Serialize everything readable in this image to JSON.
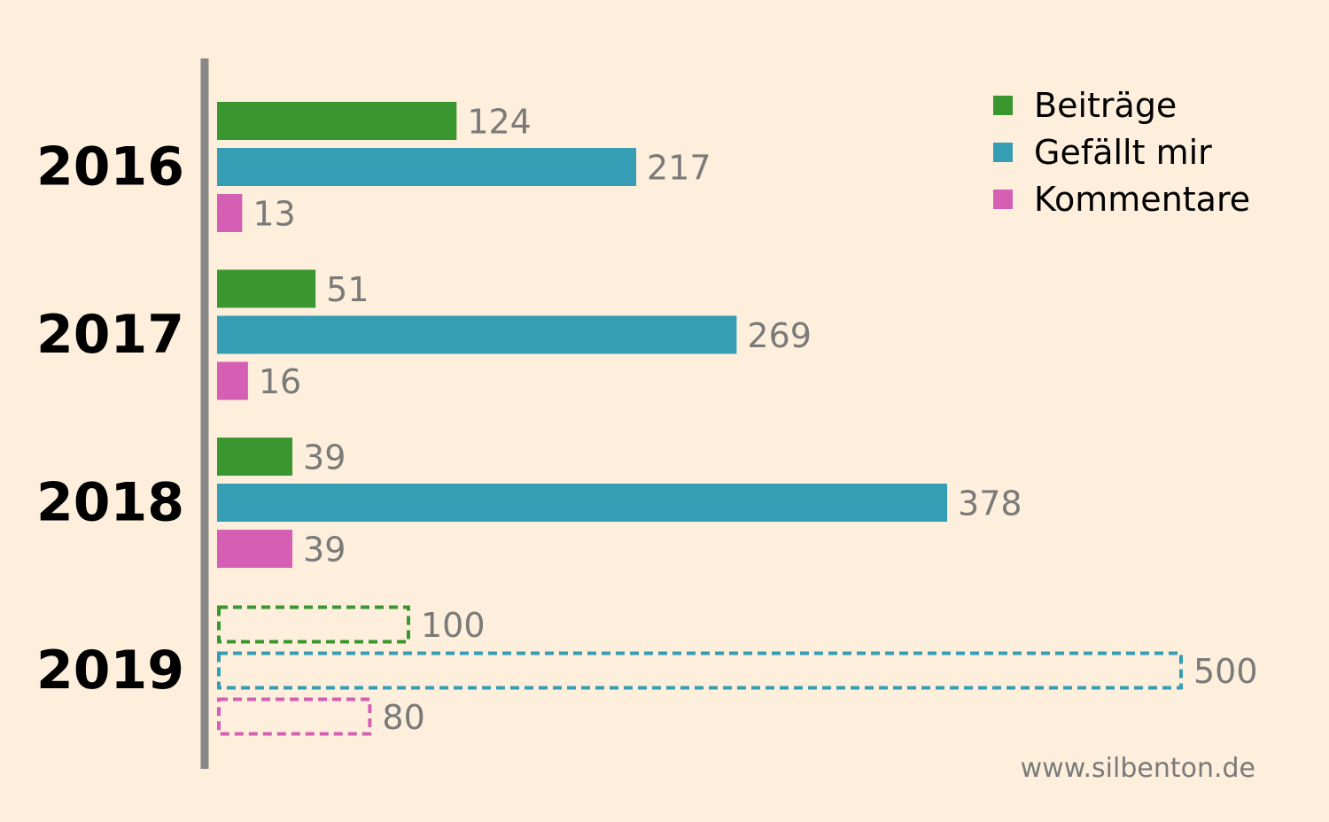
{
  "chart_data": {
    "type": "bar",
    "orientation": "horizontal",
    "categories": [
      "2016",
      "2017",
      "2018",
      "2019"
    ],
    "series": [
      {
        "name": "Beiträge",
        "color": "#3a962f",
        "values": [
          124,
          51,
          39,
          100
        ]
      },
      {
        "name": "Gefällt mir",
        "color": "#359db4",
        "values": [
          217,
          269,
          378,
          500
        ]
      },
      {
        "name": "Kommentare",
        "color": "#d45fb5",
        "values": [
          13,
          16,
          39,
          80
        ]
      }
    ],
    "projected_categories": [
      "2019"
    ],
    "legend_position": "top-right",
    "grid": false,
    "xlim": [
      0,
      500
    ]
  },
  "watermark": "www.silbenton.de",
  "colors": {
    "background": "#fdefdc",
    "axis": "#888888",
    "value_label": "#7a7a7a"
  }
}
